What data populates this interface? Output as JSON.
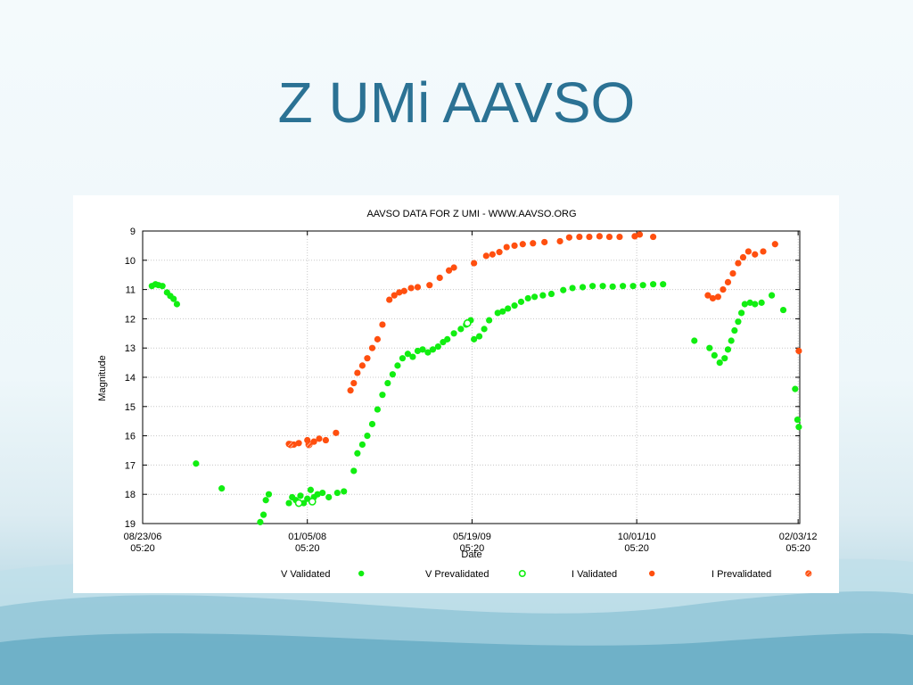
{
  "slide": {
    "title": "Z UMi AAVSO"
  },
  "chart_data": {
    "type": "scatter",
    "title": "AAVSO DATA FOR Z UMI - WWW.AAVSO.ORG",
    "xlabel": "Date",
    "ylabel": "Magnitude",
    "y_inverted": true,
    "ylim": [
      9,
      19
    ],
    "xlim": [
      "2006-08-23",
      "2012-02-08"
    ],
    "grid": true,
    "legend_position": "bottom",
    "y_ticks": [
      "9",
      "10",
      "11",
      "12",
      "13",
      "14",
      "15",
      "16",
      "17",
      "18",
      "19"
    ],
    "x_ticks": [
      {
        "date": "2006-08-23",
        "line1": "08/23/06",
        "line2": "05:20"
      },
      {
        "date": "2008-01-05",
        "line1": "01/05/08",
        "line2": "05:20"
      },
      {
        "date": "2009-05-19",
        "line1": "05/19/09",
        "line2": "05:20"
      },
      {
        "date": "2010-10-01",
        "line1": "10/01/10",
        "line2": "05:20"
      },
      {
        "date": "2012-02-03",
        "line1": "02/03/12",
        "line2": "05:20"
      }
    ],
    "series": [
      {
        "name": "V Validated",
        "color": "#11ee11",
        "marker": "filled-circle",
        "points": [
          [
            "2006-09-20",
            10.88
          ],
          [
            "2006-10-01",
            10.82
          ],
          [
            "2006-10-10",
            10.85
          ],
          [
            "2006-10-22",
            10.88
          ],
          [
            "2006-11-05",
            11.1
          ],
          [
            "2006-11-15",
            11.22
          ],
          [
            "2006-11-25",
            11.32
          ],
          [
            "2006-12-05",
            11.5
          ],
          [
            "2007-02-01",
            16.95
          ],
          [
            "2007-04-20",
            17.8
          ],
          [
            "2007-08-15",
            18.95
          ],
          [
            "2007-08-25",
            18.7
          ],
          [
            "2007-09-01",
            18.2
          ],
          [
            "2007-09-10",
            18.0
          ],
          [
            "2007-11-10",
            18.3
          ],
          [
            "2007-11-20",
            18.1
          ],
          [
            "2007-12-01",
            18.2
          ],
          [
            "2007-12-15",
            18.05
          ],
          [
            "2007-12-25",
            18.3
          ],
          [
            "2008-01-05",
            18.15
          ],
          [
            "2008-01-15",
            17.85
          ],
          [
            "2008-01-25",
            18.1
          ],
          [
            "2008-02-05",
            18.0
          ],
          [
            "2008-02-20",
            17.95
          ],
          [
            "2008-03-10",
            18.1
          ],
          [
            "2008-04-05",
            17.95
          ],
          [
            "2008-04-25",
            17.9
          ],
          [
            "2008-05-25",
            17.2
          ],
          [
            "2008-06-05",
            16.6
          ],
          [
            "2008-06-20",
            16.3
          ],
          [
            "2008-07-05",
            16.0
          ],
          [
            "2008-07-20",
            15.6
          ],
          [
            "2008-08-05",
            15.1
          ],
          [
            "2008-08-20",
            14.6
          ],
          [
            "2008-09-05",
            14.2
          ],
          [
            "2008-09-20",
            13.9
          ],
          [
            "2008-10-05",
            13.6
          ],
          [
            "2008-10-20",
            13.35
          ],
          [
            "2008-11-05",
            13.2
          ],
          [
            "2008-11-20",
            13.3
          ],
          [
            "2008-12-05",
            13.1
          ],
          [
            "2008-12-20",
            13.05
          ],
          [
            "2009-01-05",
            13.15
          ],
          [
            "2009-01-20",
            13.05
          ],
          [
            "2009-02-05",
            12.95
          ],
          [
            "2009-02-20",
            12.8
          ],
          [
            "2009-03-05",
            12.7
          ],
          [
            "2009-03-25",
            12.5
          ],
          [
            "2009-04-15",
            12.35
          ],
          [
            "2009-05-01",
            12.2
          ],
          [
            "2009-05-15",
            12.05
          ],
          [
            "2009-05-25",
            12.7
          ],
          [
            "2009-06-10",
            12.6
          ],
          [
            "2009-06-25",
            12.35
          ],
          [
            "2009-07-10",
            12.05
          ],
          [
            "2009-08-05",
            11.8
          ],
          [
            "2009-08-20",
            11.75
          ],
          [
            "2009-09-05",
            11.65
          ],
          [
            "2009-09-25",
            11.55
          ],
          [
            "2009-10-15",
            11.42
          ],
          [
            "2009-11-05",
            11.3
          ],
          [
            "2009-11-25",
            11.25
          ],
          [
            "2009-12-20",
            11.2
          ],
          [
            "2010-01-15",
            11.15
          ],
          [
            "2010-02-20",
            11.02
          ],
          [
            "2010-03-20",
            10.95
          ],
          [
            "2010-04-20",
            10.92
          ],
          [
            "2010-05-20",
            10.88
          ],
          [
            "2010-06-20",
            10.88
          ],
          [
            "2010-07-20",
            10.9
          ],
          [
            "2010-08-20",
            10.88
          ],
          [
            "2010-09-20",
            10.88
          ],
          [
            "2010-10-20",
            10.85
          ],
          [
            "2010-11-20",
            10.82
          ],
          [
            "2010-12-20",
            10.82
          ],
          [
            "2011-03-25",
            12.75
          ],
          [
            "2011-05-10",
            13.0
          ],
          [
            "2011-05-25",
            13.25
          ],
          [
            "2011-06-10",
            13.5
          ],
          [
            "2011-06-25",
            13.35
          ],
          [
            "2011-07-05",
            13.05
          ],
          [
            "2011-07-15",
            12.75
          ],
          [
            "2011-07-25",
            12.4
          ],
          [
            "2011-08-05",
            12.1
          ],
          [
            "2011-08-15",
            11.8
          ],
          [
            "2011-08-25",
            11.5
          ],
          [
            "2011-09-10",
            11.45
          ],
          [
            "2011-09-25",
            11.5
          ],
          [
            "2011-10-15",
            11.45
          ],
          [
            "2011-11-15",
            11.2
          ],
          [
            "2011-12-20",
            11.7
          ],
          [
            "2012-01-25",
            14.4
          ],
          [
            "2012-02-01",
            15.45
          ],
          [
            "2012-02-05",
            15.7
          ]
        ]
      },
      {
        "name": "V Prevalidated",
        "color": "#11ee11",
        "marker": "open-circle",
        "points": [
          [
            "2007-12-10",
            18.3
          ],
          [
            "2008-01-20",
            18.25
          ],
          [
            "2009-05-05",
            12.15
          ]
        ]
      },
      {
        "name": "I Validated",
        "color": "#ff4f0f",
        "marker": "filled-circle",
        "points": [
          [
            "2007-11-10",
            16.28
          ],
          [
            "2007-11-25",
            16.3
          ],
          [
            "2007-12-10",
            16.25
          ],
          [
            "2008-01-05",
            16.15
          ],
          [
            "2008-01-25",
            16.2
          ],
          [
            "2008-02-10",
            16.1
          ],
          [
            "2008-03-01",
            16.15
          ],
          [
            "2008-04-01",
            15.9
          ],
          [
            "2008-05-15",
            14.45
          ],
          [
            "2008-05-25",
            14.2
          ],
          [
            "2008-06-05",
            13.85
          ],
          [
            "2008-06-20",
            13.6
          ],
          [
            "2008-07-05",
            13.35
          ],
          [
            "2008-07-20",
            13.0
          ],
          [
            "2008-08-05",
            12.7
          ],
          [
            "2008-08-20",
            12.2
          ],
          [
            "2008-09-10",
            11.35
          ],
          [
            "2008-09-25",
            11.2
          ],
          [
            "2008-10-10",
            11.1
          ],
          [
            "2008-10-25",
            11.05
          ],
          [
            "2008-11-15",
            10.95
          ],
          [
            "2008-12-05",
            10.92
          ],
          [
            "2009-01-10",
            10.85
          ],
          [
            "2009-02-10",
            10.6
          ],
          [
            "2009-03-10",
            10.35
          ],
          [
            "2009-03-25",
            10.25
          ],
          [
            "2009-05-25",
            10.1
          ],
          [
            "2009-07-01",
            9.85
          ],
          [
            "2009-07-20",
            9.8
          ],
          [
            "2009-08-10",
            9.72
          ],
          [
            "2009-09-01",
            9.55
          ],
          [
            "2009-09-25",
            9.5
          ],
          [
            "2009-10-20",
            9.45
          ],
          [
            "2009-11-20",
            9.42
          ],
          [
            "2009-12-25",
            9.38
          ],
          [
            "2010-02-10",
            9.35
          ],
          [
            "2010-03-10",
            9.22
          ],
          [
            "2010-04-10",
            9.2
          ],
          [
            "2010-05-10",
            9.2
          ],
          [
            "2010-06-10",
            9.18
          ],
          [
            "2010-07-10",
            9.2
          ],
          [
            "2010-08-10",
            9.2
          ],
          [
            "2010-09-25",
            9.18
          ],
          [
            "2010-10-10",
            9.12
          ],
          [
            "2010-11-20",
            9.2
          ],
          [
            "2011-05-05",
            11.2
          ],
          [
            "2011-05-20",
            11.3
          ],
          [
            "2011-06-05",
            11.25
          ],
          [
            "2011-06-20",
            11.0
          ],
          [
            "2011-07-05",
            10.75
          ],
          [
            "2011-07-20",
            10.45
          ],
          [
            "2011-08-05",
            10.1
          ],
          [
            "2011-08-20",
            9.9
          ],
          [
            "2011-09-05",
            9.7
          ],
          [
            "2011-09-25",
            9.8
          ],
          [
            "2011-10-20",
            9.7
          ],
          [
            "2011-11-25",
            9.45
          ],
          [
            "2012-02-05",
            13.1
          ]
        ]
      },
      {
        "name": "I Prevalidated",
        "color": "#ff4f0f",
        "marker": "hatched-circle",
        "points": [
          [
            "2007-11-15",
            16.3
          ],
          [
            "2008-01-10",
            16.3
          ]
        ]
      }
    ]
  }
}
